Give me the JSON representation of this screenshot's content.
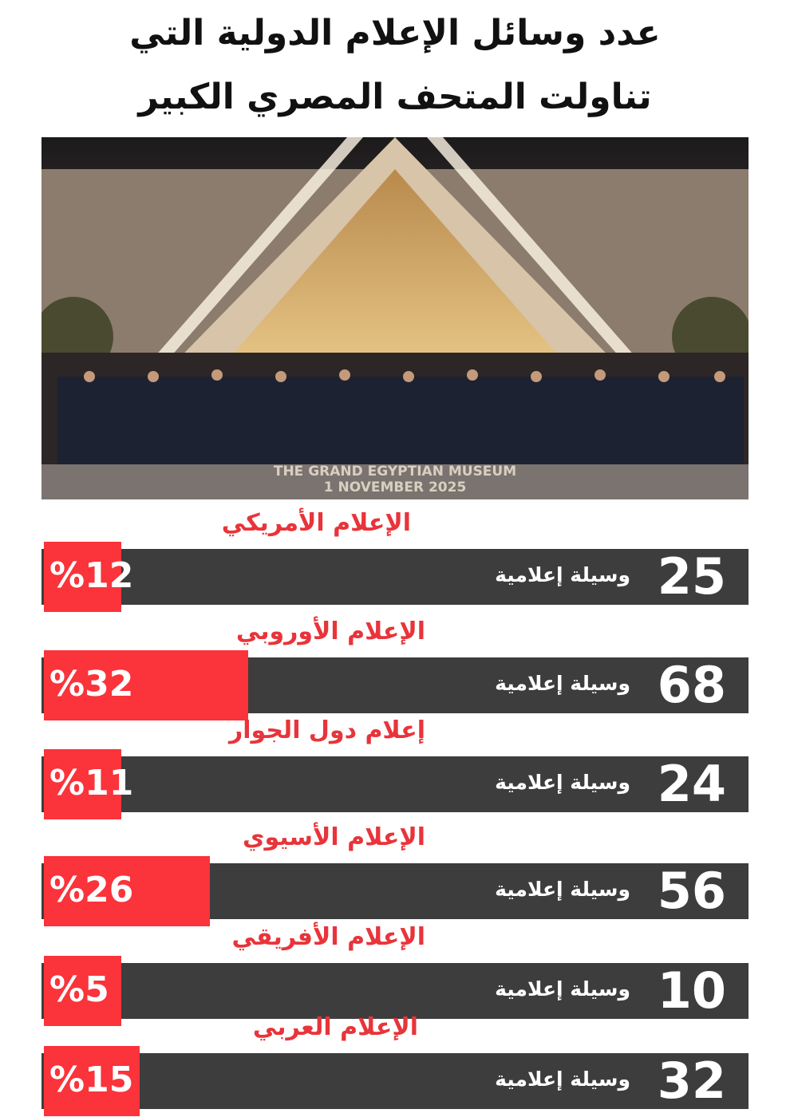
{
  "title": {
    "line1": "عدد وسائل الإعلام الدولية التي",
    "line2": "تناولت المتحف المصري الكبير"
  },
  "photo": {
    "caption_line1": "THE GRAND EGYPTIAN MUSEUM",
    "caption_line2": "1 NOVEMBER 2025"
  },
  "colors": {
    "bar": "#3d3d3d",
    "accent": "#fb333a",
    "label": "#e8343a"
  },
  "chart_data": {
    "type": "bar",
    "orientation": "horizontal",
    "unit_label": "وسيلة إعلامية",
    "categories": [
      "الإعلام الأمريكي",
      "الإعلام الأوروبي",
      "إعلام دول الجوار",
      "الإعلام الأسيوي",
      "الإعلام الأفريقي",
      "الإعلام العربي"
    ],
    "values": [
      25,
      68,
      24,
      56,
      10,
      32
    ],
    "percent_labels": [
      "%12",
      "%32",
      "%11",
      "%26",
      "%5",
      "%15"
    ],
    "percents": [
      12,
      32,
      11,
      26,
      5,
      15
    ]
  }
}
